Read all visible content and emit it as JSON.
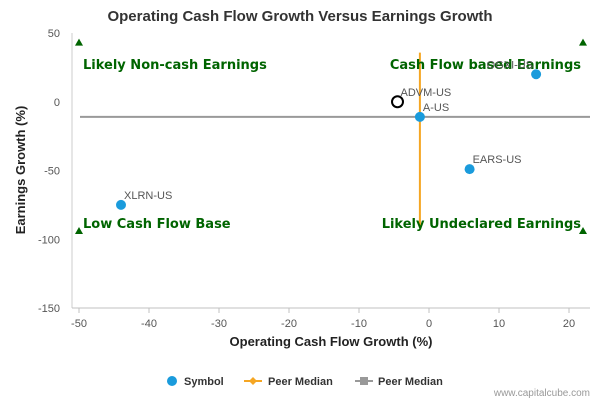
{
  "chart_data": {
    "type": "scatter",
    "title": "Operating Cash Flow Growth Versus Earnings Growth",
    "xlabel": "Operating Cash Flow Growth (%)",
    "ylabel": "Earnings Growth (%)",
    "xlim": [
      -51,
      23
    ],
    "ylim": [
      -150,
      50
    ],
    "xticks": [
      -50,
      -40,
      -30,
      -20,
      -10,
      0,
      10,
      20
    ],
    "yticks": [
      50,
      0,
      -50,
      -100,
      -150
    ],
    "grid": false,
    "legend_position": "bottom",
    "colors": {
      "symbol": "#1a9bdc",
      "peer_median_x": "#f5a623",
      "peer_median_y": "#999999",
      "quadrant_text": "#006400"
    },
    "points": [
      {
        "label": "OGXI-US",
        "x": 15.3,
        "y": 20,
        "highlight": false
      },
      {
        "label": "ADVM-US",
        "x": -4.5,
        "y": 0,
        "highlight": true
      },
      {
        "label": "A-US",
        "x": -1.3,
        "y": -11,
        "highlight": false
      },
      {
        "label": "EARS-US",
        "x": 5.8,
        "y": -49,
        "highlight": false
      },
      {
        "label": "XLRN-US",
        "x": -44,
        "y": -75,
        "highlight": false
      }
    ],
    "peer_median": {
      "x": -1.3,
      "y": -11
    },
    "quadrant_markers": [
      {
        "x": -50,
        "y": 43
      },
      {
        "x": 22,
        "y": 43
      },
      {
        "x": -50,
        "y": -94
      },
      {
        "x": 22,
        "y": -94
      }
    ],
    "quadrant_labels": {
      "top_left": "Likely Non-cash Earnings",
      "top_right": "Cash Flow based Earnings",
      "bottom_left": "Low Cash Flow Base",
      "bottom_right": "Likely Undeclared Earnings"
    },
    "legend": [
      {
        "name": "Symbol",
        "kind": "dot"
      },
      {
        "name": "Peer Median",
        "kind": "diamond"
      },
      {
        "name": "Peer Median",
        "kind": "square"
      }
    ],
    "credit": "www.capitalcube.com"
  }
}
